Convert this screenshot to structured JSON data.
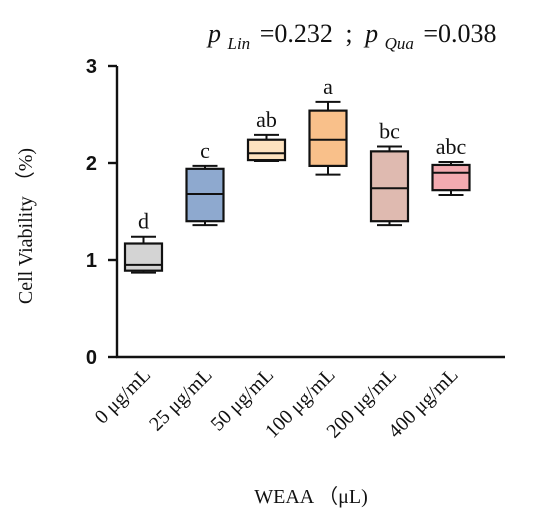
{
  "chart_data": {
    "type": "box",
    "stats": {
      "p_sym": "p",
      "lin_sub": "Lin",
      "lin_val": "=0.232",
      "sep": ";",
      "qua_sub": "Qua",
      "qua_val": "=0.038"
    },
    "xlabel": "WEAA （μL)",
    "ylabel": "Cell Viability （%)",
    "ylim": [
      0,
      3
    ],
    "yticks": [
      "0",
      "1",
      "2",
      "3"
    ],
    "grid": false,
    "categories": [
      "0 μg/mL",
      "25 μg/mL",
      "50 μg/mL",
      "100 μg/mL",
      "200 μg/mL",
      "400 μg/mL"
    ],
    "boxes": [
      {
        "category": "0 μg/mL",
        "min": 0.87,
        "q1": 0.89,
        "median": 0.95,
        "q3": 1.17,
        "max": 1.24,
        "letter": "d",
        "color": "#d4d4d4"
      },
      {
        "category": "25 μg/mL",
        "min": 1.36,
        "q1": 1.4,
        "median": 1.68,
        "q3": 1.94,
        "max": 1.97,
        "letter": "c",
        "color": "#8ea9cf"
      },
      {
        "category": "50 μg/mL",
        "min": 2.02,
        "q1": 2.03,
        "median": 2.1,
        "q3": 2.24,
        "max": 2.29,
        "letter": "ab",
        "color": "#fde2bf"
      },
      {
        "category": "100 μg/mL",
        "min": 1.88,
        "q1": 1.97,
        "median": 2.24,
        "q3": 2.54,
        "max": 2.63,
        "letter": "a",
        "color": "#f9c08a"
      },
      {
        "category": "200 μg/mL",
        "min": 1.36,
        "q1": 1.4,
        "median": 1.74,
        "q3": 2.12,
        "max": 2.17,
        "letter": "bc",
        "color": "#dfbab0"
      },
      {
        "category": "400 μg/mL",
        "min": 1.67,
        "q1": 1.72,
        "median": 1.9,
        "q3": 1.98,
        "max": 2.01,
        "letter": "abc",
        "color": "#f3aab0"
      }
    ]
  }
}
